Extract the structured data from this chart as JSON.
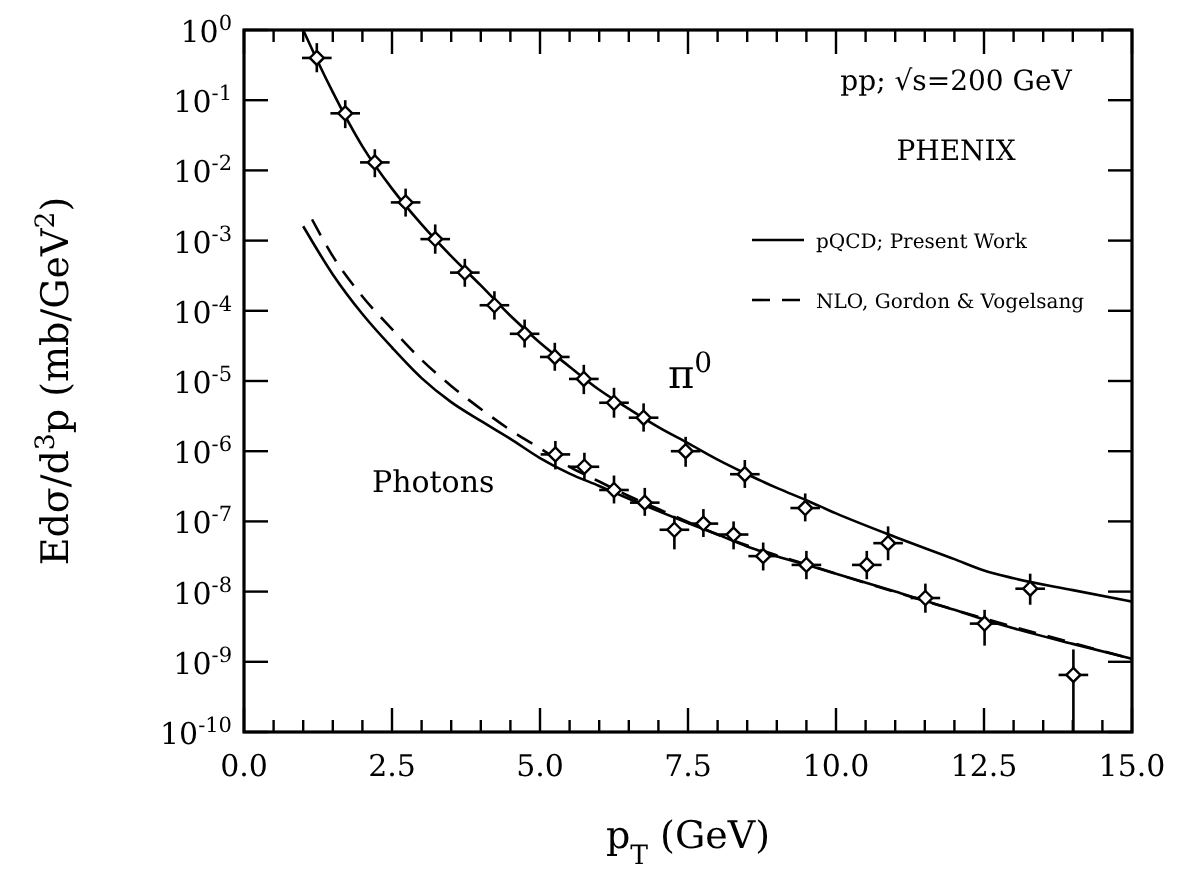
{
  "chart_data": {
    "type": "scatter",
    "xlabel": "p$_{T}$ (GeV)",
    "ylabel": "Edσ/d$^{3}$p (mb/GeV$^{2}$)",
    "log": "y",
    "grid": false,
    "legend": "top right",
    "marker": "diamond",
    "xlim": [
      0,
      15
    ],
    "ylim": [
      1e-10,
      1
    ],
    "xticks": [
      {
        "value": 0,
        "label": "0.0"
      },
      {
        "value": 0.5,
        "label": null
      },
      {
        "value": 1,
        "label": null
      },
      {
        "value": 1.5,
        "label": null
      },
      {
        "value": 2,
        "label": null
      },
      {
        "value": 2.5,
        "label": "2.5"
      },
      {
        "value": 3,
        "label": null
      },
      {
        "value": 3.5,
        "label": null
      },
      {
        "value": 4,
        "label": null
      },
      {
        "value": 4.5,
        "label": null
      },
      {
        "value": 5,
        "label": "5.0"
      },
      {
        "value": 5.5,
        "label": null
      },
      {
        "value": 6,
        "label": null
      },
      {
        "value": 6.5,
        "label": null
      },
      {
        "value": 7,
        "label": null
      },
      {
        "value": 7.5,
        "label": "7.5"
      },
      {
        "value": 8,
        "label": null
      },
      {
        "value": 8.5,
        "label": null
      },
      {
        "value": 9,
        "label": null
      },
      {
        "value": 9.5,
        "label": null
      },
      {
        "value": 10,
        "label": "10.0"
      },
      {
        "value": 10.5,
        "label": null
      },
      {
        "value": 11,
        "label": null
      },
      {
        "value": 11.5,
        "label": null
      },
      {
        "value": 12,
        "label": null
      },
      {
        "value": 12.5,
        "label": "12.5"
      },
      {
        "value": 13,
        "label": null
      },
      {
        "value": 13.5,
        "label": null
      },
      {
        "value": 14,
        "label": null
      },
      {
        "value": 14.5,
        "label": null
      },
      {
        "value": 15,
        "label": "15.0"
      }
    ],
    "yticks": [
      {
        "value": 1,
        "label": "10$^{0}$"
      },
      {
        "value": 0.1,
        "label": "10$^{-1}$"
      },
      {
        "value": 0.01,
        "label": "10$^{-2}$"
      },
      {
        "value": 0.001,
        "label": "10$^{-3}$"
      },
      {
        "value": 0.0001,
        "label": "10$^{-4}$"
      },
      {
        "value": 1e-05,
        "label": "10$^{-5}$"
      },
      {
        "value": 1e-06,
        "label": "10$^{-6}$"
      },
      {
        "value": 1e-07,
        "label": "10$^{-7}$"
      },
      {
        "value": 1e-08,
        "label": "10$^{-8}$"
      },
      {
        "value": 1e-09,
        "label": "10$^{-9}$"
      },
      {
        "value": 1e-10,
        "label": "10$^{-10}$"
      }
    ],
    "annotations": [
      "pp; √s=200 GeV",
      "PHENIX",
      "π$^{0}$",
      "Photons"
    ],
    "series": [
      {
        "type": "line",
        "name": "pQCD; Present Work",
        "color": "#000000",
        "line_style": "solid",
        "marker": "none",
        "x": [
          1.0,
          1.25,
          1.5,
          2,
          2.5,
          3,
          3.5,
          4,
          4.5,
          5,
          5.5,
          6,
          6.5,
          7,
          7.5,
          8,
          8.5,
          9,
          9.5,
          10,
          11,
          12,
          12.5,
          13,
          14,
          15
        ],
        "values": [
          1.0,
          0.35,
          0.13,
          0.022,
          0.0055,
          0.0017,
          0.0006,
          0.00023,
          8.5e-05,
          3.5e-05,
          1.6e-05,
          7.5e-06,
          4e-06,
          2.2e-06,
          1.3e-06,
          7.6e-07,
          4.7e-07,
          3e-07,
          2e-07,
          1.3e-07,
          6e-08,
          2.9e-08,
          2e-08,
          1.55e-08,
          1.05e-08,
          7.2e-09
        ]
      },
      {
        "type": "line",
        "color": "#000000",
        "line_style": "solid",
        "marker": "none",
        "x": [
          1.0,
          1.5,
          2,
          2.5,
          3,
          3.5,
          4,
          4.5,
          5,
          5.5,
          6,
          6.5,
          7,
          7.5,
          8,
          8.5,
          9,
          9.5,
          10,
          11,
          12,
          12.5,
          13,
          14,
          15
        ],
        "values": [
          0.0016,
          0.00033,
          9e-05,
          3e-05,
          1.1e-05,
          5e-06,
          2.7e-06,
          1.5e-06,
          8e-07,
          4.8e-07,
          3.2e-07,
          2.1e-07,
          1.4e-07,
          9.5e-08,
          6.5e-08,
          4.4e-08,
          3.2e-08,
          2.4e-08,
          1.8e-08,
          1e-08,
          5.5e-09,
          4e-09,
          3e-09,
          1.8e-09,
          1.1e-09
        ]
      },
      {
        "type": "line",
        "name": "NLO, Gordon & Vogelsang",
        "color": "#000000",
        "line_style": "dashed",
        "marker": "none",
        "x": [
          1.15,
          1.5,
          2,
          2.5,
          3,
          3.5,
          4,
          4.5,
          5,
          5.5,
          6,
          6.5,
          7,
          8,
          10,
          12,
          15
        ],
        "values": [
          0.002,
          0.0006,
          0.00016,
          5.5e-05,
          2e-05,
          8.5e-06,
          4e-06,
          2e-06,
          1.1e-06,
          6e-07,
          3.7e-07,
          2.3e-07,
          1.5e-07,
          6.5e-08,
          1.8e-08,
          5.5e-09,
          1.1e-09
        ]
      },
      {
        "color": "#000000",
        "x": [
          1.23,
          1.71,
          2.21,
          2.73,
          3.23,
          3.73,
          4.23,
          4.74,
          5.25,
          5.74,
          6.25,
          6.75,
          7.46,
          8.46,
          9.48,
          10.88,
          13.28
        ],
        "values": [
          0.4,
          0.065,
          0.013,
          0.0035,
          0.00105,
          0.00035,
          0.00012,
          4.7e-05,
          2.2e-05,
          1.07e-05,
          4.9e-06,
          3e-06,
          1e-06,
          4.7e-07,
          1.55e-07,
          4.9e-08,
          1.1e-08
        ],
        "errors": [
          [
            0.25,
            0.65
          ],
          [
            0.04,
            0.1
          ],
          [
            0.008,
            0.02
          ],
          [
            0.0022,
            0.0055
          ],
          [
            0.00065,
            0.0017
          ],
          [
            0.00022,
            0.00055
          ],
          [
            7.5e-05,
            0.00019
          ],
          [
            3e-05,
            7.5e-05
          ],
          [
            1.4e-05,
            3.5e-05
          ],
          [
            6.5e-06,
            1.7e-05
          ],
          [
            3e-06,
            8e-06
          ],
          [
            1.9e-06,
            4.8e-06
          ],
          [
            6e-07,
            1.6e-06
          ],
          [
            3e-07,
            7.5e-07
          ],
          [
            1e-07,
            2.5e-07
          ],
          [
            2.8e-08,
            8.5e-08
          ],
          [
            6.5e-09,
            1.8e-08
          ]
        ],
        "xerrors": [
          0.25,
          0.25,
          0.25,
          0.25,
          0.25,
          0.25,
          0.25,
          0.25,
          0.25,
          0.25,
          0.25,
          0.25,
          0.25,
          0.25,
          0.25,
          0.25,
          0.25
        ]
      },
      {
        "color": "#000000",
        "x": [
          5.26,
          5.75,
          6.25,
          6.77,
          7.27,
          7.76,
          8.27,
          8.77,
          9.5,
          10.52,
          11.51,
          12.51,
          14.01
        ],
        "values": [
          9e-07,
          6e-07,
          2.8e-07,
          1.85e-07,
          7.6e-08,
          9.3e-08,
          6.5e-08,
          3.2e-08,
          2.4e-08,
          2.4e-08,
          8.1e-09,
          3.5e-09,
          6.5e-10
        ],
        "errors": [
          [
            5.5e-07,
            1.4e-06
          ],
          [
            3.8e-07,
            9.5e-07
          ],
          [
            1.8e-07,
            4.5e-07
          ],
          [
            1.2e-07,
            3e-07
          ],
          [
            4e-08,
            1.2e-07
          ],
          [
            6e-08,
            1.5e-07
          ],
          [
            4e-08,
            1e-07
          ],
          [
            2e-08,
            5e-08
          ],
          [
            1.5e-08,
            3.8e-08
          ],
          [
            1.5e-08,
            3.8e-08
          ],
          [
            5e-09,
            1.3e-08
          ],
          [
            1.7e-09,
            5.5e-09
          ],
          [
            1e-10,
            1.5e-09
          ]
        ],
        "xerrors": [
          0.25,
          0.25,
          0.25,
          0.25,
          0.25,
          0.25,
          0.25,
          0.25,
          0.25,
          0.25,
          0.25,
          0.25,
          0.25
        ]
      }
    ]
  }
}
